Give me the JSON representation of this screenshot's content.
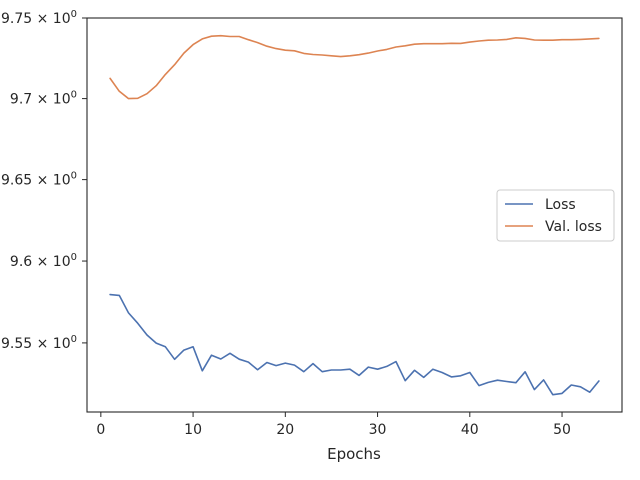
{
  "chart_data": {
    "type": "line",
    "title": "",
    "xlabel": "Epochs",
    "ylabel": "",
    "yscale": "log",
    "xlim": [
      -1.5,
      56.5
    ],
    "ylim": [
      9.508,
      9.75
    ],
    "xticks": [
      0,
      10,
      20,
      30,
      40,
      50
    ],
    "xtick_labels": [
      "0",
      "10",
      "20",
      "30",
      "40",
      "50"
    ],
    "yticks": [
      9.55,
      9.6,
      9.65,
      9.7,
      9.75
    ],
    "ytick_labels": [
      {
        "mantissa": "9.55",
        "base": "10",
        "exp": "0"
      },
      {
        "mantissa": "9.6",
        "base": "10",
        "exp": "0"
      },
      {
        "mantissa": "9.65",
        "base": "10",
        "exp": "0"
      },
      {
        "mantissa": "9.7",
        "base": "10",
        "exp": "0"
      },
      {
        "mantissa": "9.75",
        "base": "10",
        "exp": "0"
      }
    ],
    "grid": false,
    "legend_position": "center-right",
    "series": [
      {
        "name": "Loss",
        "color": "#4c72b0",
        "x": [
          1,
          2,
          3,
          4,
          5,
          6,
          7,
          8,
          9,
          10,
          11,
          12,
          13,
          14,
          15,
          16,
          17,
          18,
          19,
          20,
          21,
          22,
          23,
          24,
          25,
          26,
          27,
          28,
          29,
          30,
          31,
          32,
          33,
          34,
          35,
          36,
          37,
          38,
          39,
          40,
          41,
          42,
          43,
          44,
          45,
          46,
          47,
          48,
          49,
          50,
          51,
          52,
          53,
          54
        ],
        "values": [
          9.5795,
          9.579,
          9.5683,
          9.562,
          9.5548,
          9.5499,
          9.5476,
          9.54,
          9.5456,
          9.5476,
          9.533,
          9.5425,
          9.5402,
          9.5437,
          9.5401,
          9.5383,
          9.5336,
          9.5381,
          9.5362,
          9.5377,
          9.5365,
          9.5325,
          9.5374,
          9.5325,
          9.5335,
          9.5335,
          9.534,
          9.5302,
          9.5353,
          9.534,
          9.5357,
          9.5386,
          9.527,
          9.5333,
          9.529,
          9.534,
          9.532,
          9.5293,
          9.53,
          9.532,
          9.524,
          9.526,
          9.5273,
          9.5265,
          9.5258,
          9.5324,
          9.5216,
          9.5275,
          9.5185,
          9.5193,
          9.5244,
          9.5233,
          9.52,
          9.5268
        ]
      },
      {
        "name": "Val. loss",
        "color": "#dd8452",
        "x": [
          1,
          2,
          3,
          4,
          5,
          6,
          7,
          8,
          9,
          10,
          11,
          12,
          13,
          14,
          15,
          16,
          17,
          18,
          19,
          20,
          21,
          22,
          23,
          24,
          25,
          26,
          27,
          28,
          29,
          30,
          31,
          32,
          33,
          34,
          35,
          36,
          37,
          38,
          39,
          40,
          41,
          42,
          43,
          44,
          45,
          46,
          47,
          48,
          49,
          50,
          51,
          52,
          53,
          54
        ],
        "values": [
          9.7125,
          9.7045,
          9.7,
          9.7002,
          9.703,
          9.708,
          9.715,
          9.721,
          9.7282,
          9.7335,
          9.737,
          9.7387,
          9.739,
          9.7385,
          9.7385,
          9.7365,
          9.7347,
          9.7325,
          9.731,
          9.73,
          9.7296,
          9.728,
          9.7273,
          9.727,
          9.7265,
          9.726,
          9.7265,
          9.7272,
          9.7282,
          9.7295,
          9.7305,
          9.732,
          9.7327,
          9.7337,
          9.734,
          9.734,
          9.734,
          9.7343,
          9.7342,
          9.735,
          9.7357,
          9.7362,
          9.7363,
          9.7367,
          9.7377,
          9.7373,
          9.7363,
          9.7362,
          9.7362,
          9.7365,
          9.7365,
          9.7367,
          9.737,
          9.7373
        ]
      }
    ]
  }
}
